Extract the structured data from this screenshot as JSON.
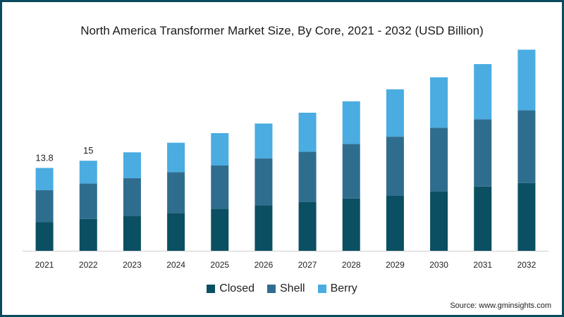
{
  "chart_data": {
    "type": "bar",
    "stacked": true,
    "title": "North America Transformer Market Size, By Core, 2021 - 2032 (USD Billion)",
    "categories": [
      "2021",
      "2022",
      "2023",
      "2024",
      "2025",
      "2026",
      "2027",
      "2028",
      "2029",
      "2030",
      "2031",
      "2032"
    ],
    "series": [
      {
        "name": "Closed",
        "color": "#0b4f63",
        "values": [
          4.8,
          5.3,
          5.8,
          6.3,
          7.0,
          7.6,
          8.1,
          8.7,
          9.2,
          9.9,
          10.7,
          11.3
        ]
      },
      {
        "name": "Shell",
        "color": "#2f6d8f",
        "values": [
          5.3,
          5.9,
          6.3,
          6.8,
          7.2,
          7.8,
          8.4,
          9.1,
          9.8,
          10.6,
          11.2,
          12.1
        ]
      },
      {
        "name": "Berry",
        "color": "#4aace0",
        "values": [
          3.7,
          3.8,
          4.3,
          4.9,
          5.4,
          5.8,
          6.5,
          7.1,
          7.9,
          8.4,
          9.2,
          10.1
        ]
      }
    ],
    "data_labels": [
      {
        "category": "2021",
        "text": "13.8"
      },
      {
        "category": "2022",
        "text": "15"
      }
    ],
    "ylim": [
      0,
      34.5
    ],
    "grid": false,
    "legend_position": "bottom-center"
  },
  "source": "Source: www.gminsights.com"
}
